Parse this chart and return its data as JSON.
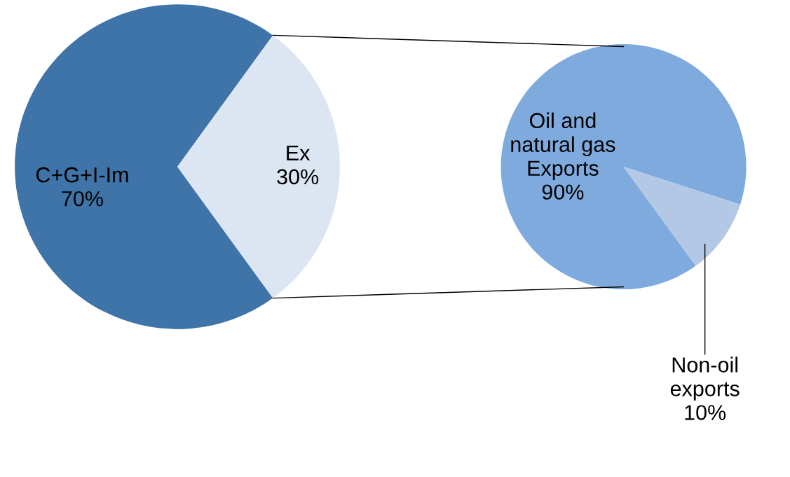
{
  "chart_data": [
    {
      "type": "pie",
      "categories": [
        "C+G+I-Im",
        "Ex"
      ],
      "values": [
        70,
        30
      ],
      "colors": [
        "#3f74a8",
        "#dce6f2"
      ],
      "value_labels": [
        "70%",
        "30%"
      ]
    },
    {
      "type": "pie",
      "categories": [
        "Oil and\nnatural gas\nExports",
        "Non-oil\nexports"
      ],
      "values": [
        90,
        10
      ],
      "colors": [
        "#7eaade",
        "#b3c8e4"
      ],
      "value_labels": [
        "90%",
        "10%"
      ]
    }
  ]
}
